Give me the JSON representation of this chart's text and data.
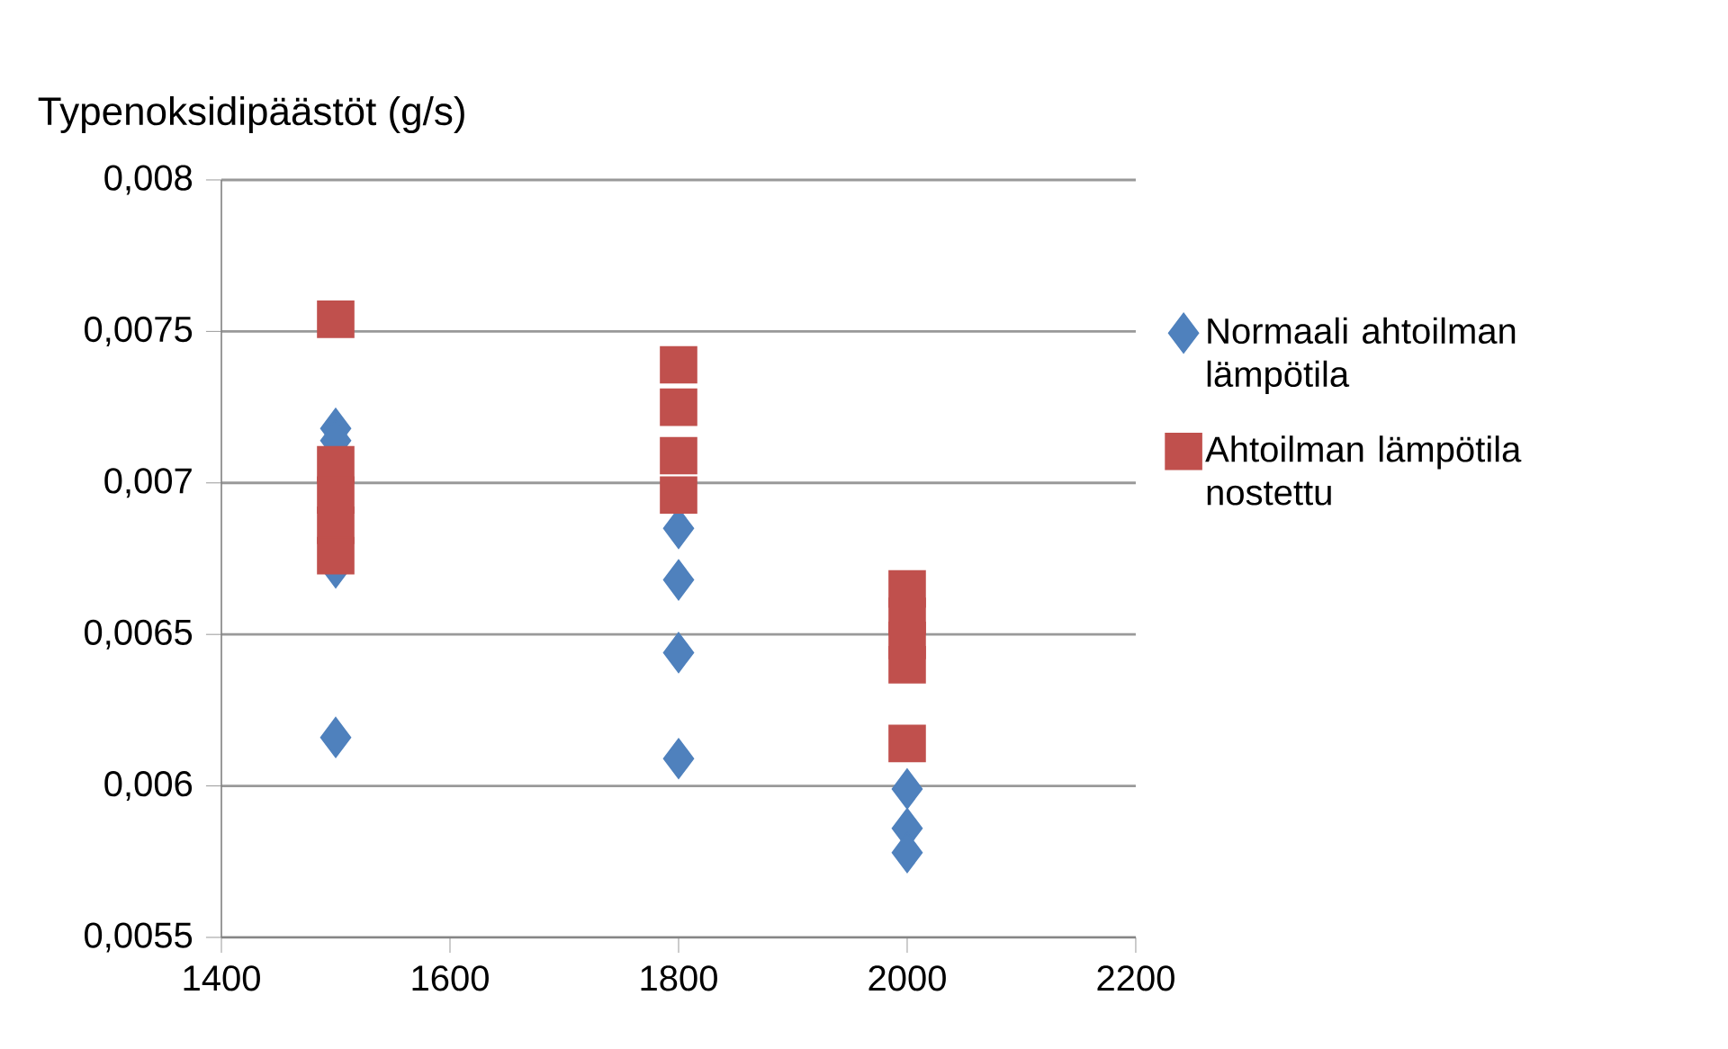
{
  "chart_data": {
    "type": "scatter",
    "ylabel": "Typenoksidipäästöt (g/s)",
    "xlim": [
      1400,
      2200
    ],
    "xticks": [
      1400,
      1600,
      1800,
      2000,
      2200
    ],
    "ylim": [
      0.0055,
      0.008
    ],
    "yticks": [
      {
        "value": 0.0055,
        "label": "0,0055"
      },
      {
        "value": 0.006,
        "label": "0,006"
      },
      {
        "value": 0.0065,
        "label": "0,0065"
      },
      {
        "value": 0.007,
        "label": "0,007"
      },
      {
        "value": 0.0075,
        "label": "0,0075"
      },
      {
        "value": 0.008,
        "label": "0,008"
      }
    ],
    "grid": "y",
    "legend": "right",
    "series": [
      {
        "name": "Normaali ahtoilman lämpötila",
        "color": "#4f81bd",
        "marker": "diamond",
        "x": [
          1500,
          1500,
          1500,
          1500,
          1800,
          1800,
          1800,
          1800,
          2000,
          2000,
          2000
        ],
        "values": [
          0.00718,
          0.00714,
          0.00672,
          0.00616,
          0.00685,
          0.00668,
          0.00644,
          0.00609,
          0.00599,
          0.00586,
          0.00578
        ]
      },
      {
        "name": "Ahtoilman lämpötila nostettu",
        "color": "#c0504d",
        "marker": "square",
        "x": [
          1500,
          1500,
          1500,
          1500,
          1500,
          1800,
          1800,
          1800,
          1800,
          2000,
          2000,
          2000,
          2000,
          2000
        ],
        "values": [
          0.00754,
          0.00706,
          0.00696,
          0.00686,
          0.00676,
          0.00739,
          0.00725,
          0.00709,
          0.00696,
          0.00665,
          0.00656,
          0.00648,
          0.0064,
          0.00614
        ]
      }
    ]
  }
}
